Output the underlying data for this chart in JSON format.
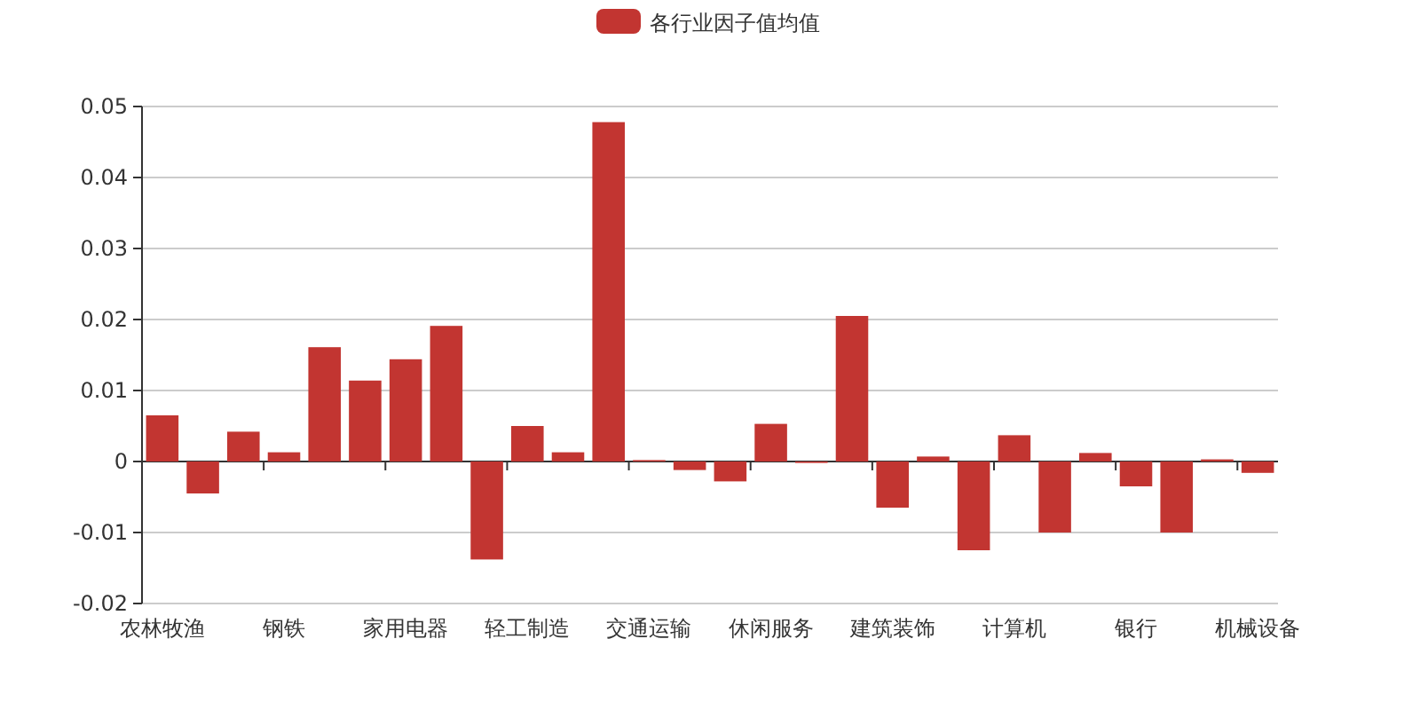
{
  "chart_data": {
    "type": "bar",
    "categories": [
      "农林牧渔",
      null,
      null,
      "钢铁",
      null,
      null,
      "家用电器",
      null,
      null,
      "轻工制造",
      null,
      null,
      "交通运输",
      null,
      null,
      "休闲服务",
      null,
      null,
      "建筑装饰",
      null,
      null,
      "计算机",
      null,
      null,
      "银行",
      null,
      null,
      "机械设备"
    ],
    "series": [
      {
        "name": "各行业因子值均值",
        "color": "#c23531",
        "values": [
          0.0065,
          -0.0045,
          0.0042,
          0.0013,
          0.0161,
          0.0114,
          0.0144,
          0.0191,
          -0.0138,
          0.005,
          0.0013,
          0.0478,
          0.0002,
          -0.0012,
          -0.0028,
          0.0053,
          -0.0002,
          0.0205,
          -0.0065,
          0.0007,
          -0.0125,
          0.0037,
          -0.01,
          0.0012,
          -0.0035,
          -0.01,
          0.0003,
          -0.0016
        ]
      }
    ],
    "ylim": [
      -0.02,
      0.05
    ],
    "yticks": [
      -0.02,
      -0.01,
      0,
      0.01,
      0.02,
      0.03,
      0.04,
      0.05
    ],
    "grid": "y",
    "legend": "top"
  }
}
